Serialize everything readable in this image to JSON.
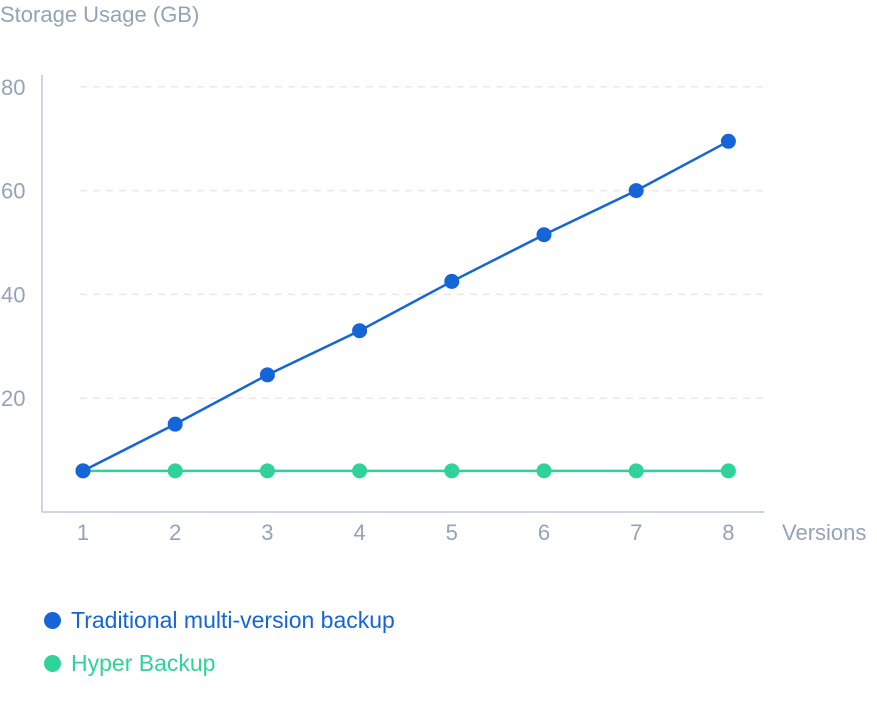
{
  "chart_data": {
    "type": "line",
    "ylabel": "Storage Usage (GB)",
    "xlabel": "Versions",
    "x": [
      1,
      2,
      3,
      4,
      5,
      6,
      7,
      8
    ],
    "yticks": [
      20,
      40,
      60,
      80
    ],
    "ylim": [
      0,
      83
    ],
    "grid": true,
    "legend_position": "bottom-left",
    "series": [
      {
        "name": "Traditional multi-version backup",
        "color": "#1565d8",
        "values": [
          6,
          15,
          24.5,
          33,
          42.5,
          51.5,
          60,
          69.5
        ]
      },
      {
        "name": "Hyper Backup",
        "color": "#2fd39a",
        "values": [
          6,
          6,
          6,
          6,
          6,
          6,
          6,
          6
        ]
      }
    ]
  }
}
